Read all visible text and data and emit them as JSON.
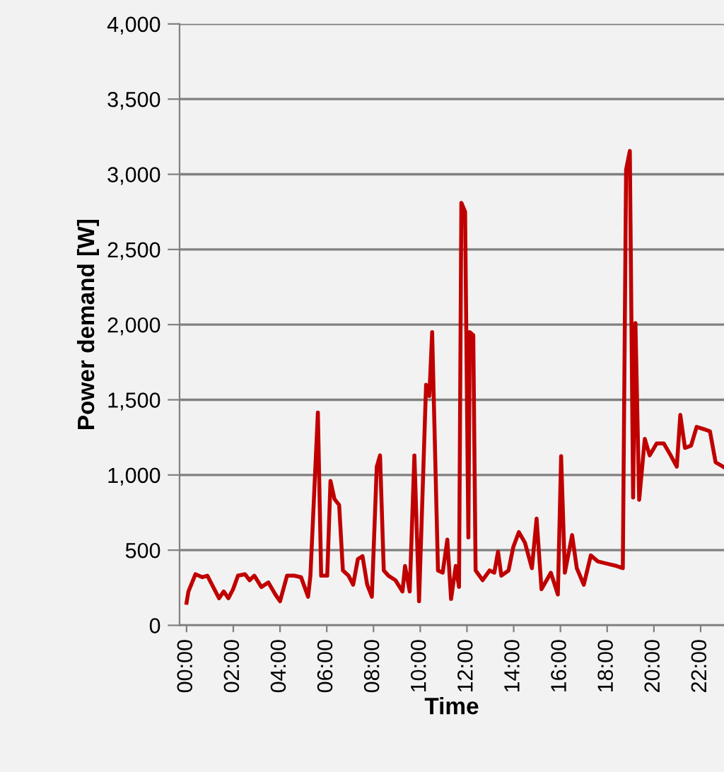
{
  "chart_data": {
    "type": "line",
    "xlabel": "Time",
    "ylabel": "Power demand [W]",
    "x": [
      0,
      0.08,
      0.38,
      0.68,
      0.89,
      1.19,
      1.39,
      1.59,
      1.79,
      1.99,
      2.2,
      2.5,
      2.7,
      2.9,
      3.2,
      3.5,
      3.8,
      4.0,
      4.3,
      4.6,
      4.9,
      5.2,
      5.3,
      5.62,
      5.76,
      6.02,
      6.16,
      6.33,
      6.53,
      6.69,
      6.93,
      7.13,
      7.33,
      7.53,
      7.73,
      7.93,
      8.14,
      8.28,
      8.44,
      8.64,
      8.94,
      9.24,
      9.35,
      9.55,
      9.75,
      9.95,
      10.25,
      10.39,
      10.51,
      10.76,
      10.96,
      11.16,
      11.32,
      11.52,
      11.66,
      11.76,
      11.92,
      12.06,
      12.12,
      12.27,
      12.37,
      12.67,
      12.97,
      13.17,
      13.33,
      13.47,
      13.78,
      13.98,
      14.22,
      14.48,
      14.78,
      14.98,
      15.19,
      15.59,
      15.89,
      16.03,
      16.19,
      16.5,
      16.7,
      17.0,
      17.3,
      17.6,
      18.0,
      18.4,
      18.67,
      18.81,
      18.97,
      19.11,
      19.21,
      19.37,
      19.61,
      19.82,
      20.12,
      20.42,
      20.72,
      20.98,
      21.13,
      21.33,
      21.59,
      21.83,
      22.13,
      22.4,
      22.64,
      22.96
    ],
    "series": [
      {
        "color": "#c00000",
        "values": [
          150,
          225,
          340,
          320,
          330,
          240,
          180,
          225,
          180,
          240,
          330,
          340,
          300,
          330,
          255,
          285,
          205,
          160,
          330,
          330,
          320,
          190,
          330,
          1415,
          330,
          330,
          960,
          840,
          800,
          365,
          330,
          270,
          440,
          460,
          270,
          190,
          1055,
          1130,
          365,
          330,
          300,
          225,
          395,
          225,
          1130,
          160,
          1600,
          1525,
          1950,
          365,
          350,
          570,
          175,
          395,
          255,
          2810,
          2750,
          585,
          1950,
          1930,
          365,
          300,
          365,
          350,
          490,
          330,
          365,
          520,
          620,
          550,
          380,
          710,
          240,
          350,
          205,
          1125,
          350,
          600,
          380,
          270,
          465,
          425,
          410,
          395,
          380,
          3030,
          3155,
          850,
          2010,
          835,
          1240,
          1130,
          1210,
          1210,
          1130,
          1055,
          1400,
          1180,
          1195,
          1320,
          1305,
          1290,
          1085,
          1055
        ]
      }
    ],
    "xlim": [
      -0.3,
      23.0
    ],
    "xticks": [
      {
        "value": 0,
        "label": "00:00"
      },
      {
        "value": 2,
        "label": "02:00"
      },
      {
        "value": 4,
        "label": "04:00"
      },
      {
        "value": 6,
        "label": "06:00"
      },
      {
        "value": 8,
        "label": "08:00"
      },
      {
        "value": 10,
        "label": "10:00"
      },
      {
        "value": 12,
        "label": "12:00"
      },
      {
        "value": 14,
        "label": "14:00"
      },
      {
        "value": 16,
        "label": "16:00"
      },
      {
        "value": 18,
        "label": "18:00"
      },
      {
        "value": 20,
        "label": "20:00"
      },
      {
        "value": 22,
        "label": "22:00"
      }
    ],
    "ylim": [
      0,
      4000
    ],
    "yticks": [
      0,
      500,
      {
        "value": 1000,
        "label": "1,000"
      },
      {
        "value": 1500,
        "label": "1,500"
      },
      {
        "value": 2000,
        "label": "2,000"
      },
      {
        "value": 2500,
        "label": "2,500"
      },
      {
        "value": 3000,
        "label": "3,000"
      },
      {
        "value": 3500,
        "label": "3,500"
      },
      {
        "value": 4000,
        "label": "4,000"
      }
    ],
    "grid": "y",
    "marker": "none",
    "line_style": "solid"
  }
}
